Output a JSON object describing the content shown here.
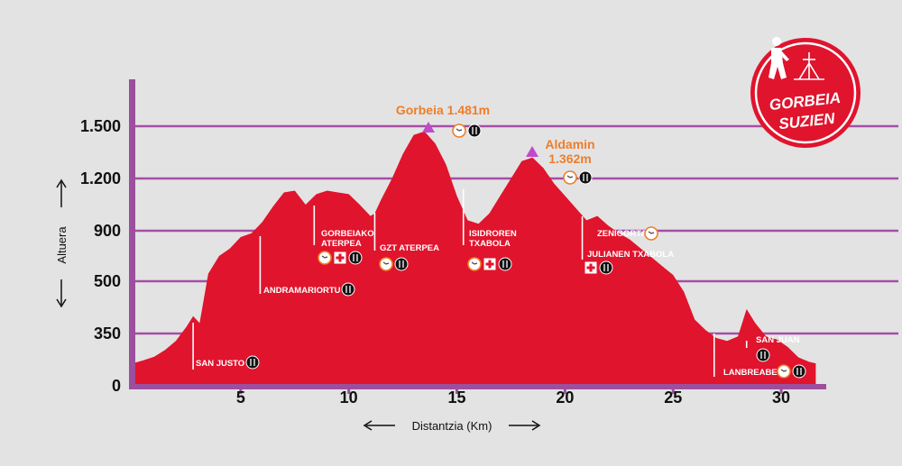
{
  "colors": {
    "background": "#e3e3e3",
    "grid": "#a64ea6",
    "axis": "#9c4f9c",
    "profile": "#e0142d",
    "peak_marker": "#c04ac8",
    "peak_label": "#ef7d2a",
    "icon_dark": "#111111",
    "icon_orange": "#ef7d2a"
  },
  "chart_data": {
    "type": "area",
    "xlabel": "Distantzia (Km)",
    "ylabel": "Altuera",
    "xlim": [
      0,
      32
    ],
    "x_ticks": [
      5,
      10,
      15,
      20,
      25,
      30
    ],
    "x_tick_labels": [
      "5",
      "10",
      "15",
      "20",
      "25",
      "30"
    ],
    "y_ticks": [
      0,
      350,
      500,
      900,
      1200,
      1500
    ],
    "y_tick_labels": [
      "0",
      "350",
      "500",
      "900",
      "1.200",
      "1.500"
    ],
    "grid": "horizontal",
    "series": [
      {
        "x": [
          0,
          0.5,
          1,
          1.5,
          2,
          2.5,
          2.8,
          3.1,
          3.5,
          4,
          4.5,
          5,
          5.5,
          6,
          6.5,
          7,
          7.5,
          8,
          8.5,
          9,
          9.5,
          10,
          10.5,
          11,
          11.2,
          11.5,
          12,
          12.5,
          13,
          13.5,
          14,
          14.5,
          15,
          15.5,
          16,
          16.5,
          17,
          17.5,
          18,
          18.5,
          19,
          19.5,
          20,
          20.5,
          21,
          21.5,
          22,
          22.5,
          23,
          23.5,
          24,
          24.5,
          25,
          25.5,
          26,
          26.5,
          27,
          27.5,
          28,
          28.4,
          28.8,
          29.3,
          29.8,
          30.3,
          30.8,
          31.3,
          31.6
        ],
        "y": [
          150,
          170,
          195,
          240,
          300,
          370,
          400,
          380,
          560,
          700,
          760,
          850,
          880,
          950,
          1040,
          1120,
          1130,
          1050,
          1110,
          1130,
          1120,
          1110,
          1050,
          985,
          1000,
          1080,
          1200,
          1340,
          1450,
          1470,
          1400,
          1280,
          1100,
          960,
          940,
          1000,
          1100,
          1200,
          1300,
          1320,
          1260,
          1170,
          1100,
          1030,
          960,
          985,
          930,
          880,
          830,
          760,
          690,
          620,
          550,
          470,
          390,
          360,
          320,
          300,
          330,
          420,
          380,
          330,
          310,
          260,
          190,
          160,
          150
        ]
      }
    ],
    "annotations": [
      {
        "label": "Gorbeia 1.481m",
        "x": 13.5,
        "y": 1481
      },
      {
        "label": "Aldamin 1.362m",
        "x": 18.5,
        "y": 1362
      }
    ]
  },
  "peaks": [
    {
      "name": "Gorbeia 1.481m",
      "lines": [
        "Gorbeia 1.481m"
      ],
      "icons": [
        "clock-icon",
        "fork-knife-icon"
      ]
    },
    {
      "name": "Aldamin 1.362m",
      "lines": [
        "Aldamin",
        "1.362m"
      ],
      "icons": [
        "clock-icon",
        "fork-knife-icon"
      ]
    }
  ],
  "points": [
    {
      "key": "san-justo",
      "x": 2.8,
      "lines": [
        "SAN JUSTO"
      ],
      "icons": [
        "fork-knife-icon"
      ]
    },
    {
      "key": "andramariortu",
      "x": 5.9,
      "lines": [
        "ANDRAMARIORTU"
      ],
      "icons": [
        "fork-knife-icon"
      ]
    },
    {
      "key": "gorbeiako-aterpea",
      "x": 8.4,
      "lines": [
        "GORBEIAKO",
        "ATERPEA"
      ],
      "icons": [
        "clock-icon",
        "first-aid-icon",
        "fork-knife-icon"
      ]
    },
    {
      "key": "gzt-aterpea",
      "x": 11.2,
      "lines": [
        "GZT ATERPEA"
      ],
      "icons": [
        "clock-icon",
        "fork-knife-icon"
      ]
    },
    {
      "key": "isidroren-txabola",
      "x": 15.3,
      "lines": [
        "ISIDROREN",
        "TXABOLA"
      ],
      "icons": [
        "clock-icon",
        "first-aid-icon",
        "fork-knife-icon"
      ]
    },
    {
      "key": "zenigorta",
      "x": 21.2,
      "lines": [
        "ZENIGORTA"
      ],
      "icons": [
        "clock-icon"
      ]
    },
    {
      "key": "julianen-txabola",
      "x": 20.8,
      "lines": [
        "JULIANEN TXABOLA"
      ],
      "icons": [
        "first-aid-icon",
        "fork-knife-icon"
      ]
    },
    {
      "key": "san-juan",
      "x": 28.4,
      "lines": [
        "SAN JUAN"
      ],
      "icons": [
        "fork-knife-icon"
      ]
    },
    {
      "key": "lanbreabe",
      "x": 26.9,
      "lines": [
        "LANBREABE"
      ],
      "icons": [
        "clock-icon",
        "fork-knife-icon"
      ]
    }
  ],
  "logo": {
    "lines": [
      "GORBEIA",
      "SUZIEN"
    ],
    "icons": [
      "runner-icon",
      "gorbeia-cross-icon"
    ]
  }
}
